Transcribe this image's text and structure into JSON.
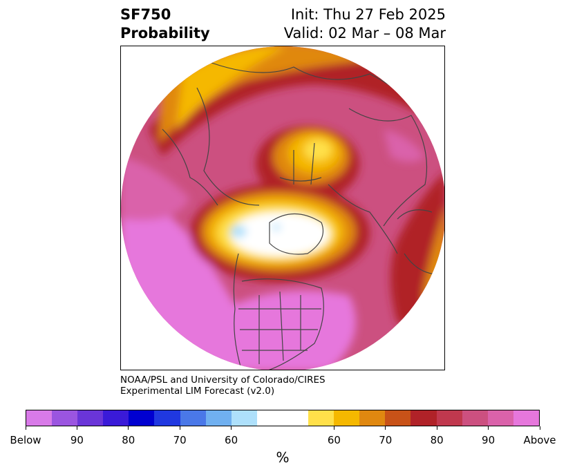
{
  "header": {
    "title_line1": "SF750",
    "title_line2": "Probability",
    "init_line": "Init: Thu 27 Feb 2025",
    "valid_line": "Valid: 02 Mar – 08 Mar"
  },
  "credit": {
    "line1": "NOAA/PSL and University of Colorado/CIRES",
    "line2": "Experimental LIM Forecast (v2.0)"
  },
  "colorbar": {
    "unit": "%",
    "tick_labels": [
      "Below",
      "90",
      "80",
      "70",
      "60",
      "60",
      "70",
      "80",
      "90",
      "Above"
    ],
    "colors": [
      "#d87ae8",
      "#9b55e0",
      "#6a35d8",
      "#3a1ad8",
      "#0000d0",
      "#2038e0",
      "#4a78e8",
      "#70b0f0",
      "#aee0fb",
      "#ffffff",
      "#ffe04a",
      "#f5b800",
      "#e08810",
      "#c85218",
      "#b02228",
      "#c0384e",
      "#cc5080",
      "#da62aa",
      "#e677dc"
    ]
  }
}
